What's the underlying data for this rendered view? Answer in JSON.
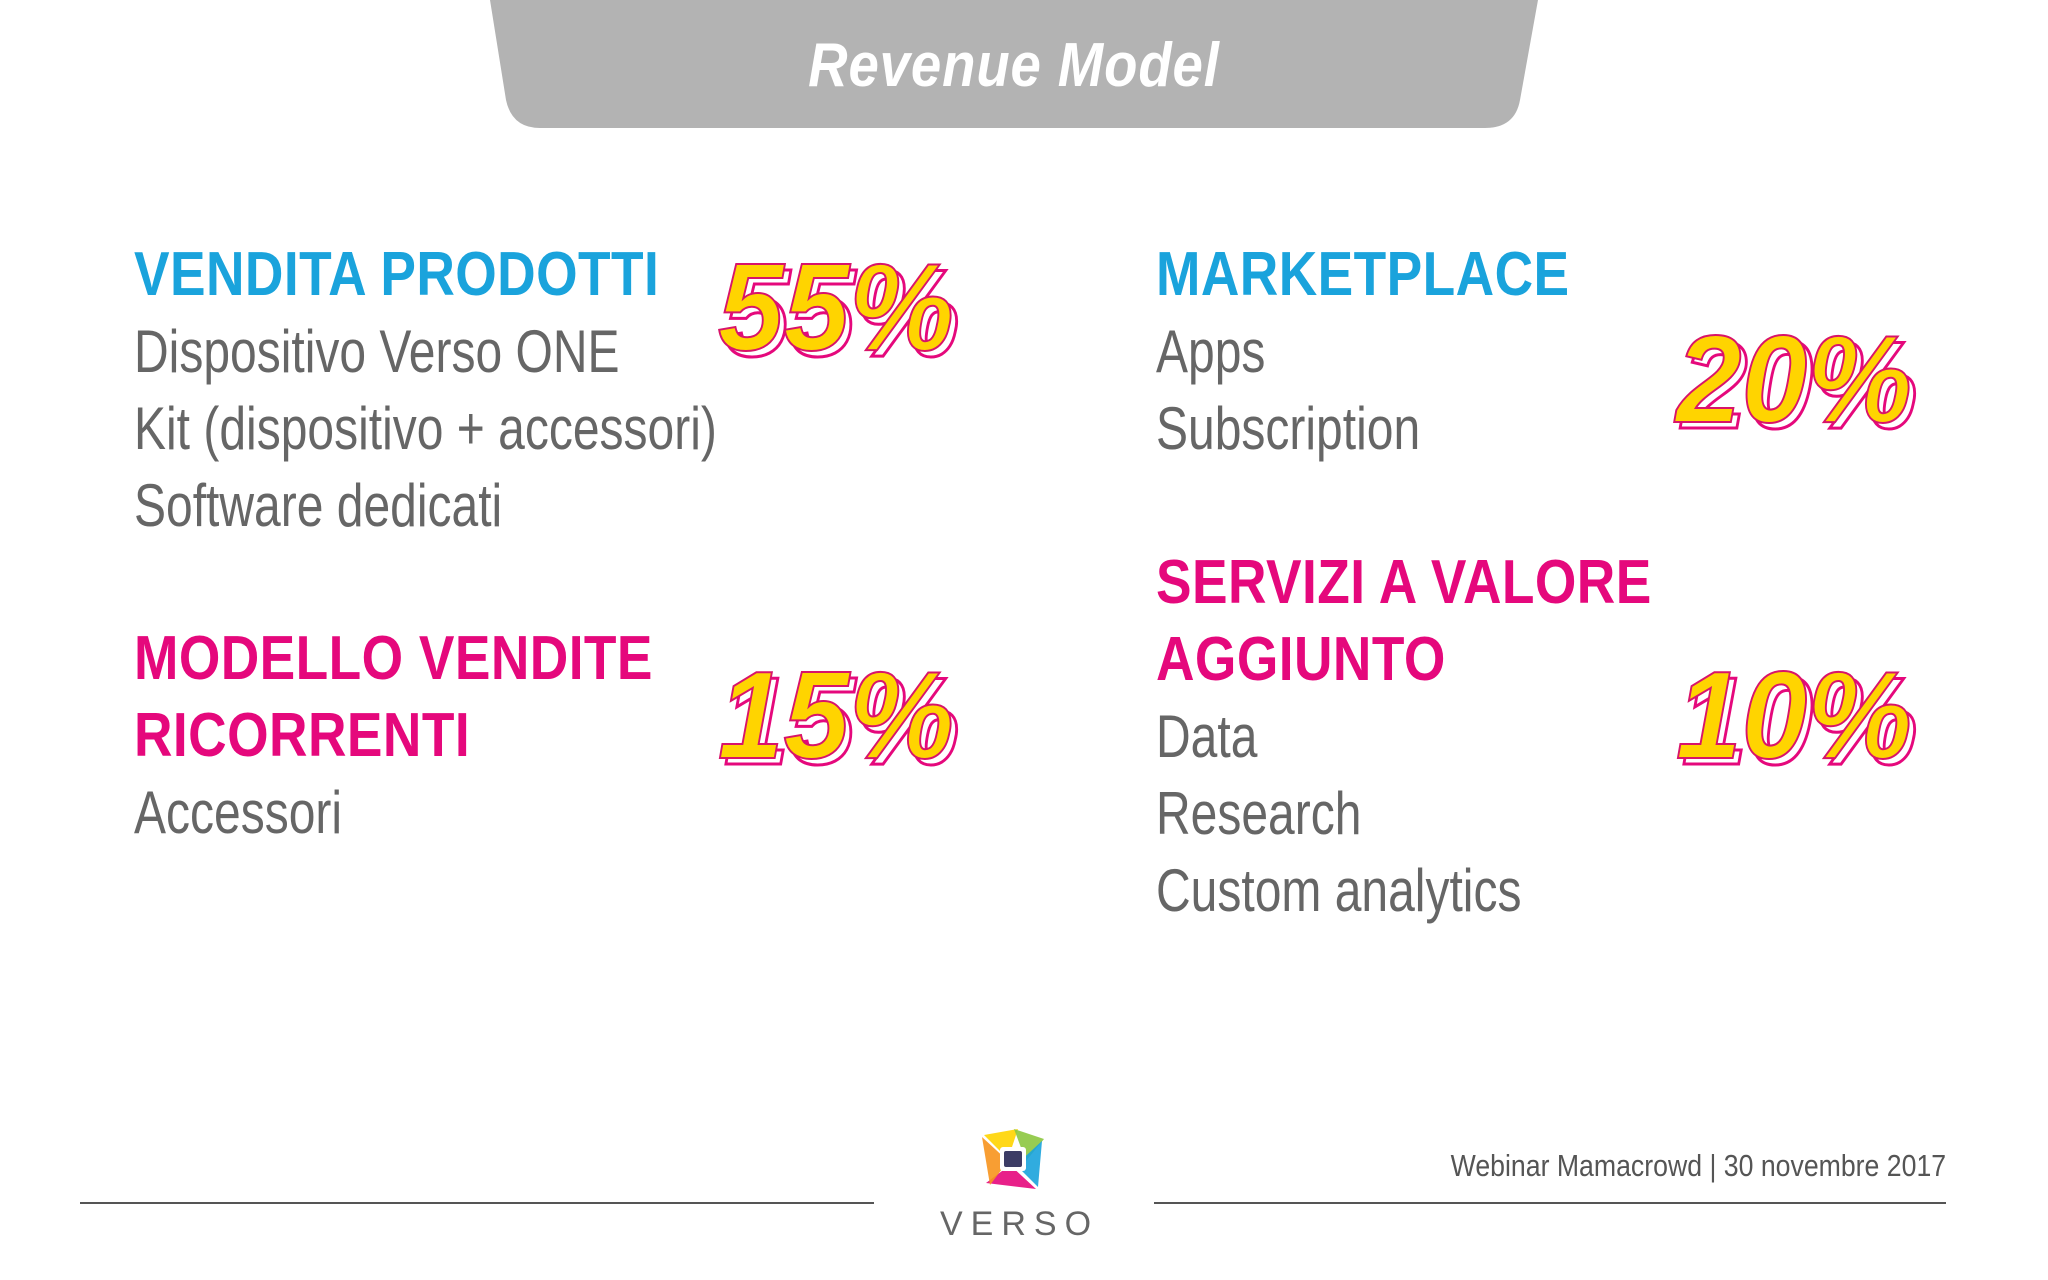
{
  "header": {
    "title": "Revenue Model"
  },
  "sections": {
    "vendita_prodotti": {
      "heading": "VENDITA PRODOTTI",
      "items": [
        "Dispositivo Verso ONE",
        "Kit (dispositivo + accessori)",
        "Software dedicati"
      ],
      "percentage": "55%"
    },
    "modello_vendite": {
      "heading_line1": "MODELLO VENDITE",
      "heading_line2": "RICORRENTI",
      "items": [
        "Accessori"
      ],
      "percentage": "15%"
    },
    "marketplace": {
      "heading": "MARKETPLACE",
      "items": [
        "Apps",
        "Subscription"
      ],
      "percentage": "20%"
    },
    "servizi": {
      "heading_line1": "SERVIZI A VALORE",
      "heading_line2": "AGGIUNTO",
      "items": [
        "Data",
        "Research",
        "Custom analytics"
      ],
      "percentage": "10%"
    }
  },
  "footer": {
    "caption": "Webinar Mamacrowd | 30 novembre 2017",
    "logo_text": "VERSO"
  },
  "colors": {
    "blue_heading": "#1aa3dc",
    "magenta_heading": "#e5087c",
    "body_text": "#666666",
    "title_tab": "#b3b3b3",
    "pct_fill": "#ffd400",
    "pct_outline": "#e5087c"
  }
}
